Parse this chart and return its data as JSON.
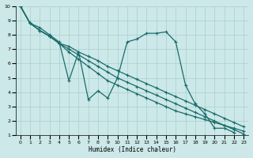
{
  "xlabel": "Humidex (Indice chaleur)",
  "bg_color": "#cce8e8",
  "grid_color": "#aacfcf",
  "line_color": "#1a6b6b",
  "xlim": [
    -0.5,
    23.5
  ],
  "ylim": [
    1,
    10
  ],
  "xticks": [
    0,
    1,
    2,
    3,
    4,
    5,
    6,
    7,
    8,
    9,
    10,
    11,
    12,
    13,
    14,
    15,
    16,
    17,
    18,
    19,
    20,
    21,
    22,
    23
  ],
  "yticks": [
    1,
    2,
    3,
    4,
    5,
    6,
    7,
    8,
    9,
    10
  ],
  "series": [
    {
      "x": [
        0,
        1,
        2,
        3,
        4,
        5,
        6,
        7,
        8,
        9,
        10,
        11,
        12,
        13,
        14,
        15,
        16,
        17,
        18,
        19,
        20,
        21,
        22,
        23
      ],
      "y": [
        10,
        8.8,
        8.5,
        8.0,
        7.5,
        4.8,
        6.8,
        3.5,
        4.1,
        3.6,
        5.0,
        7.5,
        7.7,
        8.1,
        8.1,
        8.2,
        7.5,
        4.5,
        3.2,
        2.5,
        1.5,
        1.5,
        1.2,
        null
      ]
    },
    {
      "x": [
        0,
        1,
        2,
        3,
        4,
        5,
        6,
        7,
        8,
        9,
        10,
        11,
        12,
        13,
        14,
        15,
        16,
        17,
        18,
        19,
        20,
        21,
        22,
        23
      ],
      "y": [
        10,
        8.8,
        8.3,
        7.9,
        7.4,
        7.2,
        6.8,
        6.5,
        6.2,
        5.8,
        5.5,
        5.2,
        4.9,
        4.6,
        4.3,
        4.0,
        3.7,
        3.4,
        3.1,
        2.8,
        2.5,
        2.2,
        1.9,
        1.6
      ]
    },
    {
      "x": [
        0,
        1,
        2,
        3,
        4,
        5,
        6,
        7,
        8,
        9,
        10,
        11,
        12,
        13,
        14,
        15,
        16,
        17,
        18,
        19,
        20,
        21,
        22,
        23
      ],
      "y": [
        10,
        8.8,
        8.3,
        7.9,
        7.4,
        7.0,
        6.6,
        6.2,
        5.8,
        5.4,
        5.0,
        4.7,
        4.4,
        4.1,
        3.8,
        3.5,
        3.2,
        2.9,
        2.6,
        2.3,
        2.0,
        1.7,
        1.4,
        1.1
      ]
    },
    {
      "x": [
        0,
        1,
        2,
        3,
        4,
        5,
        6,
        7,
        8,
        9,
        10,
        11,
        12,
        13,
        14,
        15,
        16,
        17,
        18,
        19,
        20,
        21,
        22,
        23
      ],
      "y": [
        10,
        8.8,
        8.3,
        7.9,
        7.4,
        6.8,
        6.3,
        5.8,
        5.3,
        4.8,
        4.5,
        4.2,
        3.9,
        3.6,
        3.3,
        3.0,
        2.7,
        2.5,
        2.3,
        2.1,
        1.9,
        1.7,
        1.5,
        1.3
      ]
    }
  ]
}
